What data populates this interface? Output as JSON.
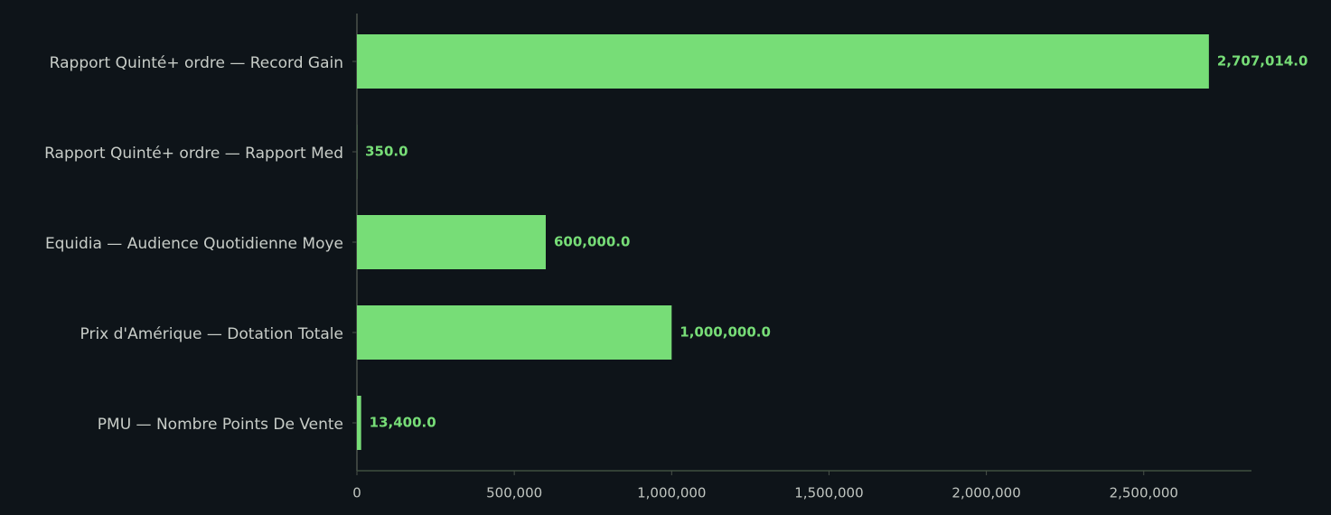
{
  "chart_data": {
    "type": "hbar",
    "categories": [
      "Rapport Quinté+ ordre — Record Gain",
      "Rapport Quinté+ ordre — Rapport Med",
      "Equidia — Audience Quotidienne Moye",
      "Prix d'Amérique — Dotation Totale",
      "PMU — Nombre Points De Vente"
    ],
    "values": [
      2707014,
      350,
      600000,
      1000000,
      13400
    ],
    "value_labels": [
      "2,707,014.0",
      "350.0",
      "600,000.0",
      "1,000,000.0",
      "13,400.0"
    ],
    "color": "#77dd77",
    "xlim": [
      0,
      2842364.7
    ],
    "xticks": [
      0,
      {
        "value": 500000,
        "label": "500,000"
      },
      {
        "value": 1000000,
        "label": "1,000,000"
      },
      {
        "value": 1500000,
        "label": "1,500,000"
      },
      {
        "value": 2000000,
        "label": "2,000,000"
      },
      {
        "value": 2500000,
        "label": "2,500,000"
      }
    ],
    "grid": false
  }
}
